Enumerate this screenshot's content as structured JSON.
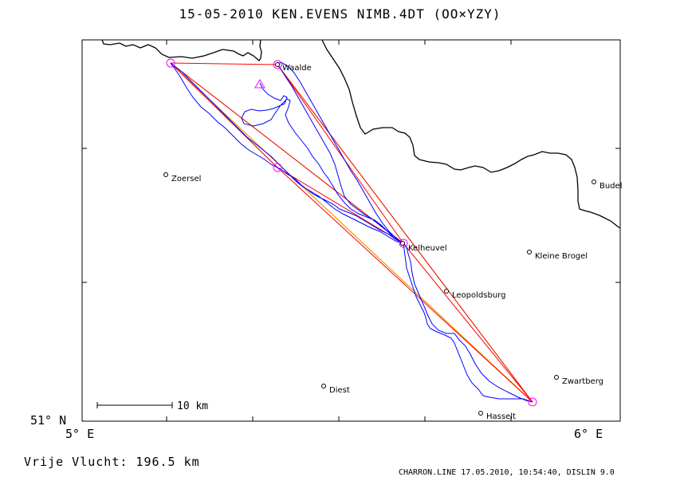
{
  "header": {
    "title": "15-05-2010    KEN.EVENS    NIMB.4DT (OO×YZY)"
  },
  "footer": {
    "distance": "Vrije Vlucht:  196.5 km",
    "credit": "CHARRON.LINE 17.05.2010, 10:54:40, DISLIN 9.0"
  },
  "axes": {
    "lat_label": "51° N",
    "lon_left_label": "5° E",
    "lon_right_label": "6° E"
  },
  "scale_bar": {
    "label": "10 km"
  },
  "places": [
    {
      "name": "Waalde"
    },
    {
      "name": "Zoersel"
    },
    {
      "name": "Budel"
    },
    {
      "name": "Kelheuvel"
    },
    {
      "name": "Kleine Brogel"
    },
    {
      "name": "Leopoldsburg"
    },
    {
      "name": "Zwartberg"
    },
    {
      "name": "Diest"
    },
    {
      "name": "Hasselt"
    }
  ],
  "colors": {
    "frame": "#000000",
    "border": "#000000",
    "track": "#0000ff",
    "route_red": "#ff0000",
    "route_green": "#77ee00",
    "route_orange": "#ff8800",
    "turnpoint": "#ff00ff"
  }
}
